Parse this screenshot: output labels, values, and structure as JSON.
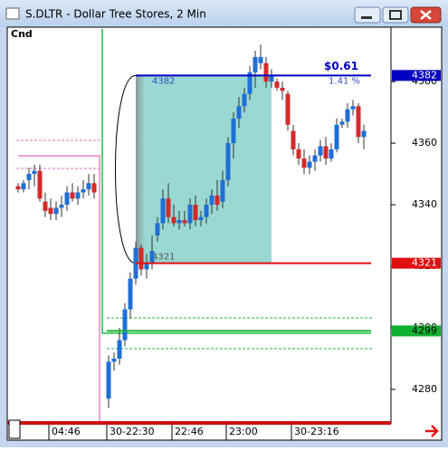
{
  "window": {
    "title": "S.DLTR - Dollar Tree Stores, 2 Min"
  },
  "chart_data": {
    "type": "candlestick",
    "label": "Cnd",
    "categories": [
      null,
      null,
      null,
      null,
      null,
      null,
      "04:46",
      null,
      null,
      null,
      null,
      null,
      null,
      null,
      null,
      "30-22:30",
      null,
      null,
      null,
      null,
      null,
      null,
      null,
      null,
      null,
      null,
      null,
      "22:46",
      null,
      null,
      null,
      null,
      null,
      null,
      null,
      null,
      null,
      "23:00",
      null,
      null,
      null,
      null,
      null,
      null,
      null,
      null,
      null,
      null,
      null,
      "30-23:16",
      null,
      null,
      null,
      null,
      null,
      null,
      null,
      null,
      null,
      null,
      null,
      null,
      null
    ],
    "open": [
      4346,
      4345,
      4348,
      4350,
      4351,
      4341,
      4339,
      4337,
      4339,
      4340,
      4344,
      4342,
      4344,
      4345,
      4347,
      4277,
      4289,
      4290,
      4296,
      4306,
      4316,
      4326,
      4319,
      4321,
      4330,
      4334,
      4342,
      4336,
      4334,
      4335,
      4334,
      4340,
      4335,
      4336,
      4340,
      4343,
      4341,
      4348,
      4360,
      4368,
      4372,
      4376,
      4383,
      4386,
      4386,
      4380,
      4380,
      4378,
      4376,
      4364,
      4358,
      4355,
      4352,
      4354,
      4356,
      4359,
      4355,
      4358,
      4366,
      4367,
      4371,
      4372,
      4362
    ],
    "high": [
      4347,
      4348,
      4352,
      4353,
      4353,
      4344,
      4342,
      4341,
      4343,
      4346,
      4347,
      4346,
      4348,
      4350,
      4350,
      4291,
      4292,
      4300,
      4308,
      4318,
      4328,
      4327,
      4324,
      4330,
      4336,
      4345,
      4347,
      4340,
      4338,
      4338,
      4342,
      4343,
      4338,
      4342,
      4345,
      4348,
      4351,
      4362,
      4370,
      4375,
      4378,
      4385,
      4390,
      4392,
      4388,
      4384,
      4381,
      4380,
      4377,
      4366,
      4360,
      4358,
      4356,
      4358,
      4361,
      4362,
      4360,
      4368,
      4368,
      4373,
      4374,
      4373,
      4366
    ],
    "low": [
      4344,
      4344,
      4345,
      4346,
      4341,
      4336,
      4335,
      4335,
      4336,
      4338,
      4341,
      4340,
      4342,
      4343,
      4342,
      4274,
      4286,
      4288,
      4294,
      4303,
      4314,
      4317,
      4316,
      4319,
      4328,
      4332,
      4334,
      4333,
      4332,
      4333,
      4332,
      4333,
      4333,
      4334,
      4337,
      4338,
      4339,
      4346,
      4355,
      4365,
      4370,
      4374,
      4378,
      4384,
      4378,
      4378,
      4377,
      4374,
      4364,
      4356,
      4353,
      4350,
      4350,
      4351,
      4354,
      4353,
      4354,
      4357,
      4365,
      4365,
      4369,
      4360,
      4358
    ],
    "close": [
      4345,
      4347,
      4350,
      4351,
      4342,
      4338,
      4337,
      4339,
      4340,
      4344,
      4342,
      4344,
      4345,
      4347,
      4344,
      4289,
      4290,
      4296,
      4306,
      4316,
      4326,
      4319,
      4321,
      4325,
      4334,
      4342,
      4336,
      4334,
      4335,
      4334,
      4340,
      4335,
      4336,
      4340,
      4343,
      4340,
      4348,
      4360,
      4368,
      4372,
      4376,
      4383,
      4388,
      4388,
      4380,
      4382,
      4378,
      4377,
      4366,
      4358,
      4355,
      4352,
      4354,
      4356,
      4359,
      4355,
      4358,
      4366,
      4367,
      4371,
      4372,
      4362,
      4364
    ],
    "up_color": "#1f6fd6",
    "down_color": "#d42a2a",
    "ylim": [
      4269.4,
      4397.1
    ],
    "yticks": [
      4280,
      4300,
      4320,
      4340,
      4360,
      4380
    ],
    "measure": {
      "from": 4321,
      "to": 4382,
      "change": "$0.61",
      "percent": "1.41 %"
    },
    "price_levels": [
      {
        "value": 4382,
        "color": "#0000c0"
      },
      {
        "value": 4321,
        "color": "#e01010"
      },
      {
        "value": 4299,
        "color": "#10b030"
      }
    ]
  }
}
